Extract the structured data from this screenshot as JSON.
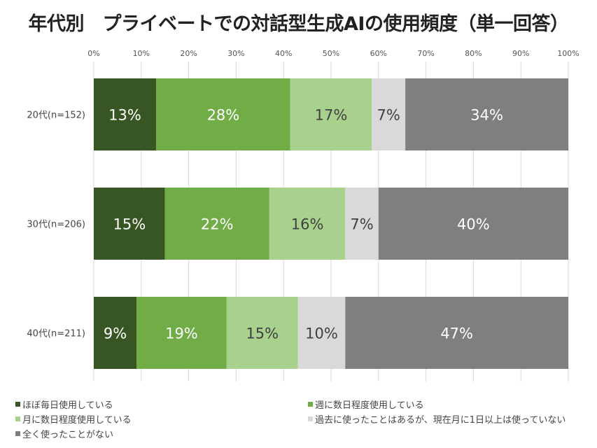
{
  "chart_data": {
    "type": "bar",
    "orientation": "horizontal",
    "stacked": true,
    "title": "年代別　プライベートでの対話型生成AIの使用頻度（単一回答）",
    "categories": [
      "20代(n=152)",
      "30代(n=206)",
      "40代(n=211)"
    ],
    "xlim": [
      0,
      100
    ],
    "xticks": [
      "0%",
      "10%",
      "20%",
      "30%",
      "40%",
      "50%",
      "60%",
      "70%",
      "80%",
      "90%",
      "100%"
    ],
    "grid": true,
    "legend_position": "bottom",
    "series": [
      {
        "name": "ほぼ毎日使用している",
        "color": "#375623",
        "label_color": "#ffffff",
        "values": [
          13,
          15,
          9
        ]
      },
      {
        "name": "週に数日程度使用している",
        "color": "#70ad47",
        "label_color": "#ffffff",
        "values": [
          28,
          22,
          19
        ]
      },
      {
        "name": "月に数日程度使用している",
        "color": "#a9d18e",
        "label_color": "#404040",
        "values": [
          17,
          16,
          15
        ]
      },
      {
        "name": "過去に使ったことはあるが、現在月に1日以上は使っていない",
        "color": "#d9d9d9",
        "label_color": "#404040",
        "values": [
          7,
          7,
          10
        ]
      },
      {
        "name": "全く使ったことがない",
        "color": "#7f7f7f",
        "label_color": "#ffffff",
        "values": [
          34,
          40,
          47
        ]
      }
    ]
  }
}
